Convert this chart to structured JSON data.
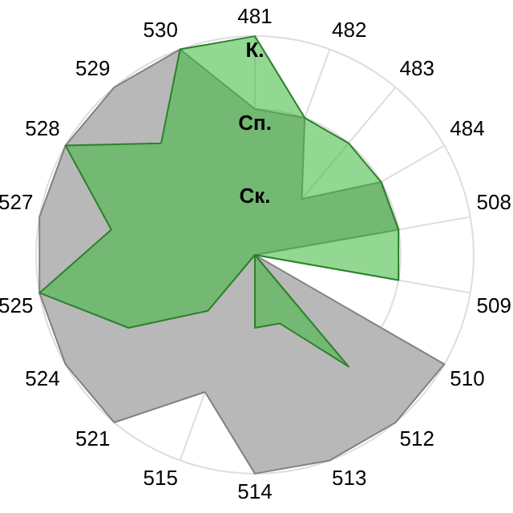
{
  "chart_data": {
    "type": "radar",
    "categories": [
      "481",
      "482",
      "483",
      "484",
      "508",
      "509",
      "510",
      "512",
      "513",
      "514",
      "515",
      "521",
      "524",
      "525",
      "527",
      "528",
      "529",
      "530"
    ],
    "ylim": [
      0,
      3
    ],
    "yticks": [
      {
        "value": 1,
        "label": "Ск."
      },
      {
        "value": 2,
        "label": "Сп."
      },
      {
        "value": 3,
        "label": "К."
      }
    ],
    "grid": true,
    "legend": false,
    "series": [
      {
        "color": "#b8b8b8",
        "values": [
          2,
          2,
          1,
          2,
          2,
          0,
          3,
          3,
          3,
          3,
          2,
          3,
          3,
          3,
          3,
          3,
          3,
          3
        ]
      },
      {
        "color": "#3cb83c",
        "values": [
          3,
          2,
          2,
          2,
          2,
          2,
          0,
          2,
          1,
          1,
          0,
          1,
          2,
          3,
          2,
          3,
          2,
          3
        ]
      }
    ]
  }
}
